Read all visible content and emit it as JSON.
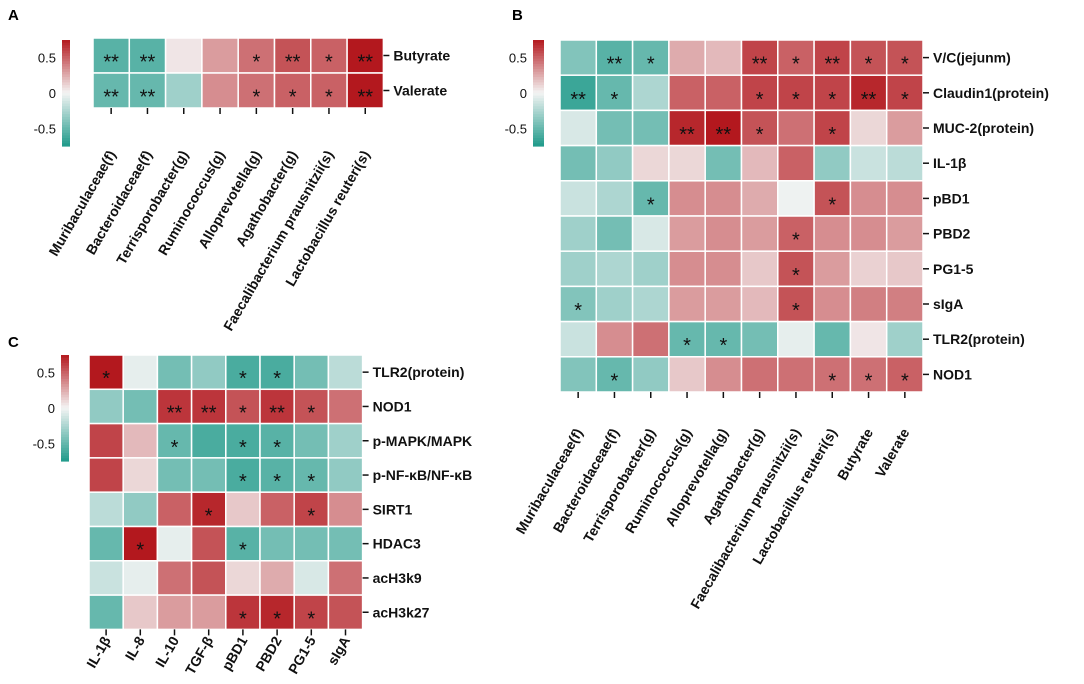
{
  "colors": {
    "low": "#1f9a8a",
    "mid": "#f4f4f4",
    "high": "#b3181e",
    "cell_border": "#ffffff"
  },
  "chart_data": [
    {
      "type": "heatmap",
      "panel": "A",
      "title": "",
      "colorbar_ticks": [
        "0.5",
        "0",
        "-0.5"
      ],
      "colorbar_tick_values": [
        0.5,
        0,
        -0.5
      ],
      "range": [
        -0.75,
        0.75
      ],
      "rows": [
        "Butyrate",
        "Valerate"
      ],
      "columns": [
        "Muribaculaceae(f)",
        "Bacteroidaceae(f)",
        "Terrisporobacter(g)",
        "Ruminococcus(g)",
        "Alloprevotella(g)",
        "Agathobacter(g)",
        "Faecalibacterium prausnitzii(s)",
        "Lactobacillus reuteri(s)"
      ],
      "values": [
        [
          -0.55,
          -0.55,
          0.05,
          0.3,
          0.45,
          0.55,
          0.5,
          0.75
        ],
        [
          -0.5,
          -0.5,
          -0.3,
          0.35,
          0.45,
          0.5,
          0.5,
          0.75
        ]
      ],
      "stars": [
        [
          "**",
          "**",
          "",
          "",
          "*",
          "**",
          "*",
          "**"
        ],
        [
          "**",
          "**",
          "",
          "",
          "*",
          "*",
          "*",
          "**"
        ]
      ]
    },
    {
      "type": "heatmap",
      "panel": "B",
      "title": "",
      "colorbar_ticks": [
        "0.5",
        "0",
        "-0.5"
      ],
      "colorbar_tick_values": [
        0.5,
        0,
        -0.5
      ],
      "range": [
        -0.75,
        0.75
      ],
      "rows": [
        "V/C(jejunm)",
        "Claudin1(protein)",
        "MUC-2(protein)",
        "IL-1β",
        "pBD1",
        "PBD2",
        "PG1-5",
        "sIgA",
        "TLR2(protein)",
        "NOD1"
      ],
      "columns": [
        "Muribaculaceae(f)",
        "Bacteroidaceae(f)",
        "Terrisporobacter(g)",
        "Ruminococcus(g)",
        "Alloprevotella(g)",
        "Agathobacter(g)",
        "Faecalibacterium prausnitzii(s)",
        "Lactobacillus reuteri(s)",
        "Butyrate",
        "Valerate"
      ],
      "values": [
        [
          -0.4,
          -0.55,
          -0.5,
          0.25,
          0.2,
          0.6,
          0.5,
          0.6,
          0.55,
          0.55
        ],
        [
          -0.65,
          -0.5,
          -0.25,
          0.5,
          0.5,
          0.6,
          0.6,
          0.6,
          0.7,
          0.6
        ],
        [
          -0.1,
          -0.45,
          -0.45,
          0.7,
          0.75,
          0.55,
          0.45,
          0.6,
          0.1,
          0.3
        ],
        [
          -0.45,
          -0.35,
          0.1,
          0.1,
          -0.45,
          0.2,
          0.5,
          -0.35,
          -0.15,
          -0.2
        ],
        [
          -0.15,
          -0.25,
          -0.5,
          0.35,
          0.35,
          0.25,
          -0.02,
          0.55,
          0.35,
          0.35
        ],
        [
          -0.3,
          -0.45,
          -0.1,
          0.3,
          0.35,
          0.3,
          0.5,
          0.35,
          0.35,
          0.3
        ],
        [
          -0.3,
          -0.25,
          -0.3,
          0.35,
          0.35,
          0.15,
          0.55,
          0.3,
          0.12,
          0.15
        ],
        [
          -0.4,
          -0.3,
          -0.25,
          0.3,
          0.3,
          0.2,
          0.55,
          0.35,
          0.4,
          0.4
        ],
        [
          -0.15,
          0.35,
          0.45,
          -0.5,
          -0.5,
          -0.45,
          -0.05,
          -0.5,
          0.05,
          -0.3
        ],
        [
          -0.4,
          -0.5,
          -0.35,
          0.15,
          0.35,
          0.45,
          0.45,
          0.45,
          0.45,
          0.5
        ]
      ],
      "stars": [
        [
          "",
          "**",
          "*",
          "",
          "",
          "**",
          "*",
          "**",
          "*",
          "*"
        ],
        [
          "**",
          "*",
          "",
          "",
          "",
          "*",
          "*",
          "*",
          "**",
          "*"
        ],
        [
          "",
          "",
          "",
          "**",
          "**",
          "*",
          "",
          "*",
          "",
          ""
        ],
        [
          "",
          "",
          "",
          "",
          "",
          "",
          "",
          "",
          "",
          ""
        ],
        [
          "",
          "",
          "*",
          "",
          "",
          "",
          "",
          "*",
          "",
          ""
        ],
        [
          "",
          "",
          "",
          "",
          "",
          "",
          "*",
          "",
          "",
          ""
        ],
        [
          "",
          "",
          "",
          "",
          "",
          "",
          "*",
          "",
          "",
          ""
        ],
        [
          "*",
          "",
          "",
          "",
          "",
          "",
          "*",
          "",
          "",
          ""
        ],
        [
          "",
          "",
          "",
          "*",
          "*",
          "",
          "",
          "",
          "",
          ""
        ],
        [
          "",
          "*",
          "",
          "",
          "",
          "",
          "",
          "*",
          "*",
          "*"
        ]
      ]
    },
    {
      "type": "heatmap",
      "panel": "C",
      "title": "",
      "colorbar_ticks": [
        "0.5",
        "0",
        "-0.5"
      ],
      "colorbar_tick_values": [
        0.5,
        0,
        -0.5
      ],
      "range": [
        -0.75,
        0.75
      ],
      "rows": [
        "TLR2(protein)",
        "NOD1",
        "p-MAPK/MAPK",
        "p-NF-κB/NF-κB",
        "SIRT1",
        "HDAC3",
        "acH3k9",
        "acH3k27"
      ],
      "columns": [
        "IL-1β",
        "IL-8",
        "IL-10",
        "TGF-β",
        "pBD1",
        "PBD2",
        "PG1-5",
        "sIgA"
      ],
      "values": [
        [
          0.75,
          -0.05,
          -0.45,
          -0.35,
          -0.6,
          -0.6,
          -0.45,
          -0.2
        ],
        [
          -0.35,
          -0.45,
          0.65,
          0.65,
          0.55,
          0.65,
          0.55,
          0.45
        ],
        [
          0.6,
          0.2,
          -0.5,
          -0.6,
          -0.6,
          -0.55,
          -0.45,
          -0.3
        ],
        [
          0.6,
          0.1,
          -0.45,
          -0.45,
          -0.6,
          -0.55,
          -0.5,
          -0.35
        ],
        [
          -0.2,
          -0.35,
          0.5,
          0.7,
          0.15,
          0.5,
          0.6,
          0.35
        ],
        [
          -0.5,
          0.75,
          -0.05,
          0.55,
          -0.55,
          -0.45,
          -0.45,
          -0.45
        ],
        [
          -0.15,
          -0.05,
          0.45,
          0.55,
          0.1,
          0.25,
          -0.1,
          0.45
        ],
        [
          -0.5,
          0.15,
          0.3,
          0.3,
          0.65,
          0.7,
          0.6,
          0.55
        ]
      ],
      "stars": [
        [
          "*",
          "",
          "",
          "",
          "*",
          "*",
          "",
          ""
        ],
        [
          "",
          "",
          "**",
          "**",
          "*",
          "**",
          "*",
          ""
        ],
        [
          "",
          "",
          "*",
          "",
          "*",
          "*",
          "",
          ""
        ],
        [
          "",
          "",
          "",
          "",
          "*",
          "*",
          "*",
          ""
        ],
        [
          "",
          "",
          "",
          "*",
          "",
          "",
          "*",
          ""
        ],
        [
          "",
          "*",
          "",
          "",
          "*",
          "",
          "",
          ""
        ],
        [
          "",
          "",
          "",
          "",
          "",
          "",
          "",
          ""
        ],
        [
          "",
          "",
          "",
          "",
          "*",
          "*",
          "*",
          ""
        ]
      ]
    }
  ]
}
